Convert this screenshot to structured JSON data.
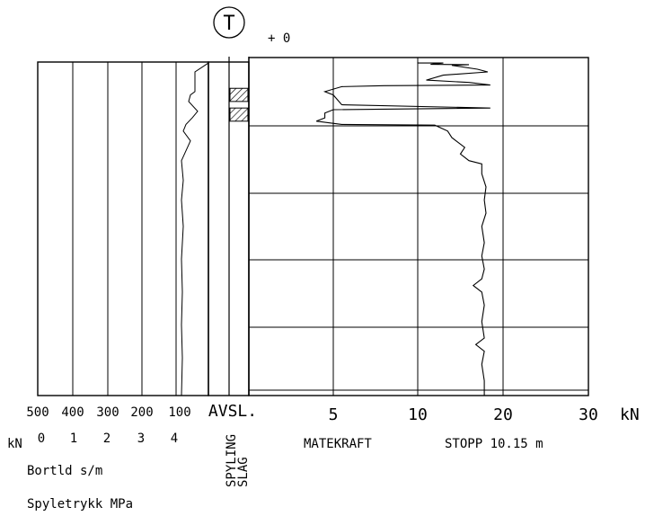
{
  "header": {
    "symbol": "T",
    "offset": "+ 0"
  },
  "left_panel": {
    "bortid_ticks": [
      "500",
      "400",
      "300",
      "200",
      "100"
    ],
    "spyletrykk_ticks": [
      "0",
      "1",
      "2",
      "3",
      "4"
    ],
    "unit_prefix": "kN",
    "bortid_label": "Bortld s/m",
    "spyletrykk_label": "Spyletrykk MPa"
  },
  "middle_panel": {
    "avsl_label": "AVSL.",
    "spyling_label": "SPYLING",
    "slag_label": "SLAG"
  },
  "right_panel": {
    "x_ticks": [
      "5",
      "10",
      "20",
      "30"
    ],
    "unit": "kN",
    "xlabel": "MATEKRAFT",
    "stop_label": "STOPP 10.15 m"
  },
  "chart_data": {
    "type": "line",
    "title": "",
    "xlabel": "MATEKRAFT",
    "x_unit": "kN",
    "xlim": [
      0,
      30
    ],
    "ylim": [
      0,
      10.15
    ],
    "y_direction": "down",
    "grid": true,
    "stop_depth_m": 10.15,
    "marked_intervals": [
      {
        "column": "SLAG",
        "from": 0.8,
        "to": 1.2
      },
      {
        "column": "SLAG",
        "from": 1.4,
        "to": 1.8
      }
    ],
    "series": [
      {
        "column": "MATEKRAFT",
        "points": [
          [
            10,
            0.0
          ],
          [
            10,
            0.03
          ],
          [
            13,
            0.03
          ],
          [
            11.5,
            0.07
          ],
          [
            16,
            0.08
          ],
          [
            14,
            0.1
          ],
          [
            17,
            0.22
          ],
          [
            18.2,
            0.3
          ],
          [
            13,
            0.4
          ],
          [
            11,
            0.55
          ],
          [
            16,
            0.62
          ],
          [
            18.5,
            0.7
          ],
          [
            8,
            0.72
          ],
          [
            5.5,
            0.75
          ],
          [
            4.5,
            0.9
          ],
          [
            5,
            1.0
          ],
          [
            5.5,
            1.3
          ],
          [
            18.5,
            1.4
          ],
          [
            5,
            1.45
          ],
          [
            4.5,
            1.55
          ],
          [
            4.5,
            1.7
          ],
          [
            4,
            1.8
          ],
          [
            5.5,
            1.9
          ],
          [
            12,
            1.92
          ],
          [
            13.5,
            2.1
          ],
          [
            14,
            2.3
          ],
          [
            15.5,
            2.6
          ],
          [
            15,
            2.8
          ],
          [
            16,
            3.0
          ],
          [
            17.5,
            3.1
          ],
          [
            17.5,
            3.4
          ],
          [
            18,
            3.8
          ],
          [
            17.8,
            4.2
          ],
          [
            18,
            4.6
          ],
          [
            17.5,
            5.0
          ],
          [
            17.8,
            5.5
          ],
          [
            17.5,
            5.9
          ],
          [
            17.8,
            6.3
          ],
          [
            17.5,
            6.6
          ],
          [
            16.5,
            6.8
          ],
          [
            17.5,
            7.0
          ],
          [
            17.8,
            7.4
          ],
          [
            17.5,
            7.9
          ],
          [
            17.8,
            8.4
          ],
          [
            16.8,
            8.6
          ],
          [
            17.8,
            8.8
          ],
          [
            17.5,
            9.2
          ],
          [
            17.8,
            9.7
          ],
          [
            17.8,
            10.15
          ]
        ]
      },
      {
        "column": "Bortld s/m",
        "points": [
          [
            0,
            0.0
          ],
          [
            0,
            0.03
          ],
          [
            15,
            0.3
          ],
          [
            15,
            0.9
          ],
          [
            20,
            1.0
          ],
          [
            22,
            1.2
          ],
          [
            12,
            1.5
          ],
          [
            18,
            1.7
          ],
          [
            25,
            1.9
          ],
          [
            28,
            2.1
          ],
          [
            20,
            2.4
          ],
          [
            30,
            3.0
          ],
          [
            28,
            3.6
          ],
          [
            30,
            4.2
          ],
          [
            28,
            5.0
          ],
          [
            30,
            6.0
          ],
          [
            29,
            7.0
          ],
          [
            30,
            8.0
          ],
          [
            29,
            9.0
          ],
          [
            30,
            10.15
          ]
        ]
      }
    ]
  }
}
